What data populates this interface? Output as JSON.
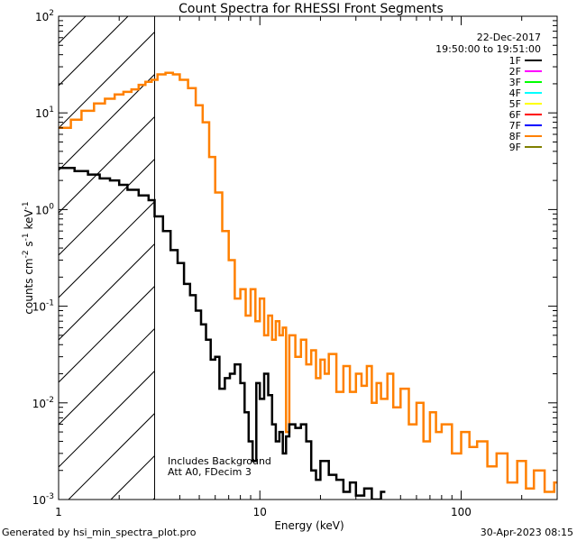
{
  "chart_data": {
    "type": "line",
    "title": "Count Spectra for RHESSI Front Segments",
    "xlabel": "Energy (keV)",
    "ylabel_main": "counts cm",
    "ylabel_exp1": "-2",
    "ylabel_mid": " s",
    "ylabel_exp2": "-1",
    "ylabel_end": " keV",
    "ylabel_exp3": "-1",
    "xscale": "log",
    "yscale": "log",
    "xlim": [
      1,
      300
    ],
    "ylim": [
      0.001,
      100
    ],
    "x_ticks": [
      {
        "value": 1,
        "label": "1"
      },
      {
        "value": 10,
        "label": "10"
      },
      {
        "value": 100,
        "label": "100"
      }
    ],
    "y_ticks": [
      {
        "value": 100,
        "base": "10",
        "exp": "2"
      },
      {
        "value": 10,
        "base": "10",
        "exp": "1"
      },
      {
        "value": 1,
        "base": "10",
        "exp": "0"
      },
      {
        "value": 0.1,
        "base": "10",
        "exp": "-1"
      },
      {
        "value": 0.01,
        "base": "10",
        "exp": "-2"
      },
      {
        "value": 0.001,
        "base": "10",
        "exp": "-3"
      }
    ],
    "shaded_region": {
      "x_from": 1,
      "x_to": 3,
      "pattern": "diagonal-hatch"
    },
    "legend_header": [
      "22-Dec-2017",
      "19:50:00 to 19:51:00"
    ],
    "legend": [
      {
        "name": "1F",
        "color": "#000000"
      },
      {
        "name": "2F",
        "color": "#ff00ff"
      },
      {
        "name": "3F",
        "color": "#00ff00"
      },
      {
        "name": "4F",
        "color": "#00ffff"
      },
      {
        "name": "5F",
        "color": "#ffff00"
      },
      {
        "name": "6F",
        "color": "#ff0000"
      },
      {
        "name": "7F",
        "color": "#0000ff"
      },
      {
        "name": "8F",
        "color": "#ff8000"
      },
      {
        "name": "9F",
        "color": "#808000"
      }
    ],
    "annotations": [
      "Includes Background",
      "Att A0, FDecim 3"
    ],
    "series": [
      {
        "name": "8F",
        "color": "#ff8000",
        "points": [
          [
            1.0,
            7.0
          ],
          [
            1.15,
            8.5
          ],
          [
            1.3,
            10.5
          ],
          [
            1.5,
            12.5
          ],
          [
            1.7,
            14
          ],
          [
            1.9,
            15.5
          ],
          [
            2.1,
            16.5
          ],
          [
            2.3,
            17.5
          ],
          [
            2.5,
            19.5
          ],
          [
            2.7,
            21
          ],
          [
            2.9,
            22
          ],
          [
            3.1,
            25
          ],
          [
            3.4,
            26
          ],
          [
            3.7,
            25
          ],
          [
            4.0,
            22
          ],
          [
            4.4,
            18
          ],
          [
            4.8,
            12
          ],
          [
            5.2,
            8
          ],
          [
            5.6,
            3.5
          ],
          [
            6.0,
            1.5
          ],
          [
            6.5,
            0.6
          ],
          [
            7.0,
            0.3
          ],
          [
            7.5,
            0.12
          ],
          [
            8.0,
            0.15
          ],
          [
            8.5,
            0.08
          ],
          [
            9.0,
            0.15
          ],
          [
            9.5,
            0.07
          ],
          [
            10.0,
            0.12
          ],
          [
            10.5,
            0.05
          ],
          [
            11.0,
            0.08
          ],
          [
            11.5,
            0.045
          ],
          [
            12.0,
            0.07
          ],
          [
            12.5,
            0.05
          ],
          [
            13.0,
            0.06
          ],
          [
            13.5,
            0.005
          ],
          [
            14.0,
            0.05
          ],
          [
            15,
            0.03
          ],
          [
            16,
            0.045
          ],
          [
            17,
            0.025
          ],
          [
            18,
            0.035
          ],
          [
            19,
            0.018
          ],
          [
            20,
            0.028
          ],
          [
            21,
            0.02
          ],
          [
            22,
            0.032
          ],
          [
            24,
            0.013
          ],
          [
            26,
            0.024
          ],
          [
            28,
            0.013
          ],
          [
            30,
            0.02
          ],
          [
            32,
            0.015
          ],
          [
            34,
            0.024
          ],
          [
            36,
            0.01
          ],
          [
            38,
            0.016
          ],
          [
            40,
            0.011
          ],
          [
            43,
            0.02
          ],
          [
            46,
            0.009
          ],
          [
            50,
            0.014
          ],
          [
            55,
            0.006
          ],
          [
            60,
            0.01
          ],
          [
            65,
            0.004
          ],
          [
            70,
            0.008
          ],
          [
            75,
            0.005
          ],
          [
            80,
            0.006
          ],
          [
            90,
            0.003
          ],
          [
            100,
            0.005
          ],
          [
            110,
            0.0035
          ],
          [
            120,
            0.004
          ],
          [
            135,
            0.0022
          ],
          [
            150,
            0.003
          ],
          [
            170,
            0.0015
          ],
          [
            190,
            0.0025
          ],
          [
            210,
            0.0013
          ],
          [
            230,
            0.002
          ],
          [
            260,
            0.0012
          ],
          [
            290,
            0.0015
          ]
        ]
      },
      {
        "name": "1F",
        "color": "#000000",
        "points": [
          [
            1.0,
            2.7
          ],
          [
            1.2,
            2.5
          ],
          [
            1.4,
            2.3
          ],
          [
            1.6,
            2.1
          ],
          [
            1.8,
            2.0
          ],
          [
            2.0,
            1.8
          ],
          [
            2.2,
            1.6
          ],
          [
            2.5,
            1.4
          ],
          [
            2.8,
            1.25
          ],
          [
            3.0,
            0.85
          ],
          [
            3.3,
            0.6
          ],
          [
            3.6,
            0.38
          ],
          [
            3.9,
            0.28
          ],
          [
            4.2,
            0.17
          ],
          [
            4.5,
            0.13
          ],
          [
            4.8,
            0.09
          ],
          [
            5.1,
            0.065
          ],
          [
            5.4,
            0.045
          ],
          [
            5.7,
            0.028
          ],
          [
            6.0,
            0.03
          ],
          [
            6.3,
            0.014
          ],
          [
            6.7,
            0.018
          ],
          [
            7.1,
            0.02
          ],
          [
            7.5,
            0.025
          ],
          [
            8.0,
            0.016
          ],
          [
            8.4,
            0.008
          ],
          [
            8.8,
            0.004
          ],
          [
            9.2,
            0.0025
          ],
          [
            9.6,
            0.016
          ],
          [
            10.0,
            0.011
          ],
          [
            10.5,
            0.02
          ],
          [
            11,
            0.012
          ],
          [
            11.5,
            0.006
          ],
          [
            12,
            0.004
          ],
          [
            12.5,
            0.005
          ],
          [
            13,
            0.003
          ],
          [
            13.5,
            0.0045
          ],
          [
            14,
            0.006
          ],
          [
            15,
            0.0055
          ],
          [
            16,
            0.006
          ],
          [
            17,
            0.004
          ],
          [
            18,
            0.002
          ],
          [
            19,
            0.0016
          ],
          [
            20,
            0.0025
          ],
          [
            22,
            0.0018
          ],
          [
            24,
            0.0016
          ],
          [
            26,
            0.0012
          ],
          [
            28,
            0.0015
          ],
          [
            30,
            0.0011
          ],
          [
            33,
            0.0013
          ],
          [
            36,
            0.001
          ],
          [
            40,
            0.0012
          ]
        ]
      }
    ]
  },
  "footer": {
    "generated_by": "Generated by hsi_min_spectra_plot.pro",
    "date": "30-Apr-2023 08:15"
  }
}
